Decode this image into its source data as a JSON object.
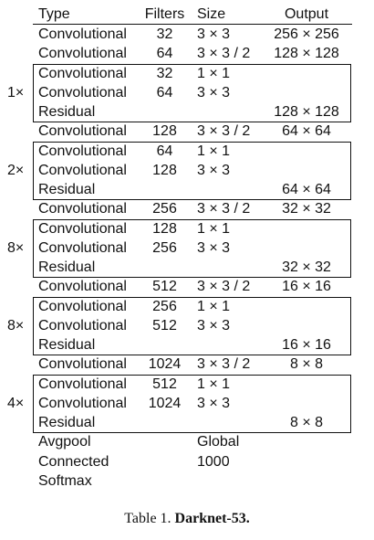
{
  "table": {
    "headers": {
      "type": "Type",
      "filters": "Filters",
      "size": "Size",
      "output": "Output"
    },
    "rows": [
      {
        "type": "Convolutional",
        "filters": "32",
        "size": "3 × 3",
        "output": "256 × 256"
      },
      {
        "type": "Convolutional",
        "filters": "64",
        "size": "3 × 3 / 2",
        "output": "128 × 128"
      },
      {
        "type": "Convolutional",
        "filters": "32",
        "size": "1 × 1",
        "output": ""
      },
      {
        "type": "Convolutional",
        "filters": "64",
        "size": "3 × 3",
        "output": ""
      },
      {
        "type": "Residual",
        "filters": "",
        "size": "",
        "output": "128 × 128"
      },
      {
        "type": "Convolutional",
        "filters": "128",
        "size": "3 × 3 / 2",
        "output": "64 × 64"
      },
      {
        "type": "Convolutional",
        "filters": "64",
        "size": "1 × 1",
        "output": ""
      },
      {
        "type": "Convolutional",
        "filters": "128",
        "size": "3 × 3",
        "output": ""
      },
      {
        "type": "Residual",
        "filters": "",
        "size": "",
        "output": "64 × 64"
      },
      {
        "type": "Convolutional",
        "filters": "256",
        "size": "3 × 3 / 2",
        "output": "32 × 32"
      },
      {
        "type": "Convolutional",
        "filters": "128",
        "size": "1 × 1",
        "output": ""
      },
      {
        "type": "Convolutional",
        "filters": "256",
        "size": "3 × 3",
        "output": ""
      },
      {
        "type": "Residual",
        "filters": "",
        "size": "",
        "output": "32 × 32"
      },
      {
        "type": "Convolutional",
        "filters": "512",
        "size": "3 × 3 / 2",
        "output": "16 × 16"
      },
      {
        "type": "Convolutional",
        "filters": "256",
        "size": "1 × 1",
        "output": ""
      },
      {
        "type": "Convolutional",
        "filters": "512",
        "size": "3 × 3",
        "output": ""
      },
      {
        "type": "Residual",
        "filters": "",
        "size": "",
        "output": "16 × 16"
      },
      {
        "type": "Convolutional",
        "filters": "1024",
        "size": "3 × 3 / 2",
        "output": "8 × 8"
      },
      {
        "type": "Convolutional",
        "filters": "512",
        "size": "1 × 1",
        "output": ""
      },
      {
        "type": "Convolutional",
        "filters": "1024",
        "size": "3 × 3",
        "output": ""
      },
      {
        "type": "Residual",
        "filters": "",
        "size": "",
        "output": "8 × 8"
      },
      {
        "type": "Avgpool",
        "filters": "",
        "size": "Global",
        "output": ""
      },
      {
        "type": "Connected",
        "filters": "",
        "size": "1000",
        "output": ""
      },
      {
        "type": "Softmax",
        "filters": "",
        "size": "",
        "output": ""
      }
    ],
    "groups": [
      {
        "multiplier": "1×"
      },
      {
        "multiplier": "2×"
      },
      {
        "multiplier": "8×"
      },
      {
        "multiplier": "8×"
      },
      {
        "multiplier": "4×"
      }
    ]
  },
  "caption": {
    "prefix": "Table 1. ",
    "title": "Darknet-53."
  }
}
